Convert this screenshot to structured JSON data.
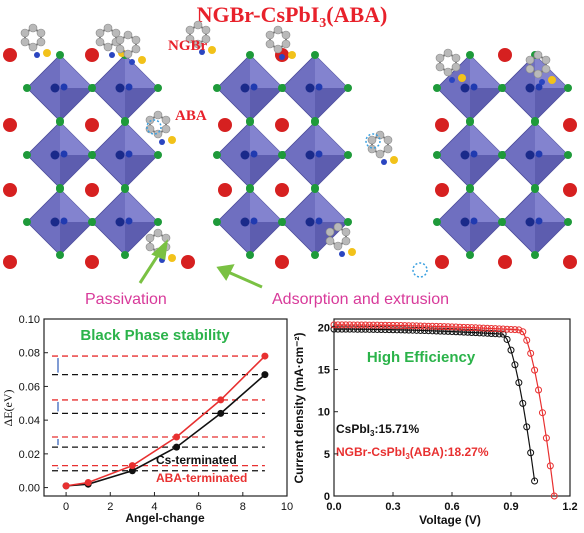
{
  "figure": {
    "title_main": "NGBr-CsPbI",
    "title_sub": "3",
    "title_tail": "(ABA)",
    "label_ngbr": "NGBr",
    "label_aba": "ABA",
    "label_passivation": "Passivation",
    "label_adsorption": "Adsorption and extrusion",
    "colors": {
      "title": "#e8212b",
      "octahedron": "#6f6fc0",
      "cs_atom": "#d62020",
      "halide_atom": "#1e9a3a",
      "pb_atom": "#1a2a8a",
      "annotation_text": "#d83a9a",
      "arrow": "#7ac143"
    }
  },
  "chart_left": {
    "title": "Black Phase stability",
    "xlabel": "Angel-change",
    "ylabel": "ΔE(eV)",
    "xticks": [
      "0",
      "2",
      "4",
      "6",
      "8",
      "10"
    ],
    "yticks": [
      "0.00",
      "0.02",
      "0.04",
      "0.06",
      "0.08",
      "0.10"
    ],
    "legend_cs": "Cs-terminated",
    "legend_aba": "ABA-terminated"
  },
  "chart_right": {
    "title": "High Efficiency",
    "xlabel": "Voltage (V)",
    "ylabel": "Current density (mA·cm⁻²)",
    "xticks": [
      "0.0",
      "0.3",
      "0.6",
      "0.9",
      "1.2"
    ],
    "yticks": [
      "0",
      "5",
      "10",
      "15",
      "20"
    ],
    "legend_a": "CsPbI",
    "legend_a_sub": "3",
    "legend_a_tail": ":15.71%",
    "legend_b": "NGBr-CsPbI",
    "legend_b_sub": "3",
    "legend_b_tail": "(ABA):18.27%"
  },
  "chart_data": [
    {
      "type": "line",
      "title": "Black Phase stability",
      "xlabel": "Angel-change",
      "ylabel": "ΔE(eV)",
      "xlim": [
        -1,
        10
      ],
      "ylim": [
        -0.005,
        0.1
      ],
      "series": [
        {
          "name": "Cs-terminated",
          "x": [
            0,
            1,
            3,
            5,
            7,
            9
          ],
          "y": [
            0.001,
            0.002,
            0.01,
            0.024,
            0.044,
            0.067
          ]
        },
        {
          "name": "ABA-terminated",
          "x": [
            0,
            1,
            3,
            5,
            7,
            9
          ],
          "y": [
            0.001,
            0.003,
            0.013,
            0.03,
            0.052,
            0.078
          ]
        }
      ],
      "reference_levels": [
        {
          "cs": 0.067,
          "aba": 0.078
        },
        {
          "cs": 0.044,
          "aba": 0.052
        },
        {
          "cs": 0.024,
          "aba": 0.03
        },
        {
          "cs": 0.01,
          "aba": 0.013
        }
      ]
    },
    {
      "type": "line",
      "title": "High Efficiency",
      "xlabel": "Voltage (V)",
      "ylabel": "Current density (mA·cm⁻²)",
      "xlim": [
        0,
        1.2
      ],
      "ylim": [
        0,
        21
      ],
      "series": [
        {
          "name": "CsPbI3:15.71%",
          "jsc": 19.8,
          "voc": 1.03,
          "vknee": 0.86,
          "color": "#111111"
        },
        {
          "name": "NGBr-CsPbI3(ABA):18.27%",
          "jsc": 20.3,
          "voc": 1.12,
          "vknee": 0.95,
          "color": "#e83030"
        }
      ]
    }
  ]
}
